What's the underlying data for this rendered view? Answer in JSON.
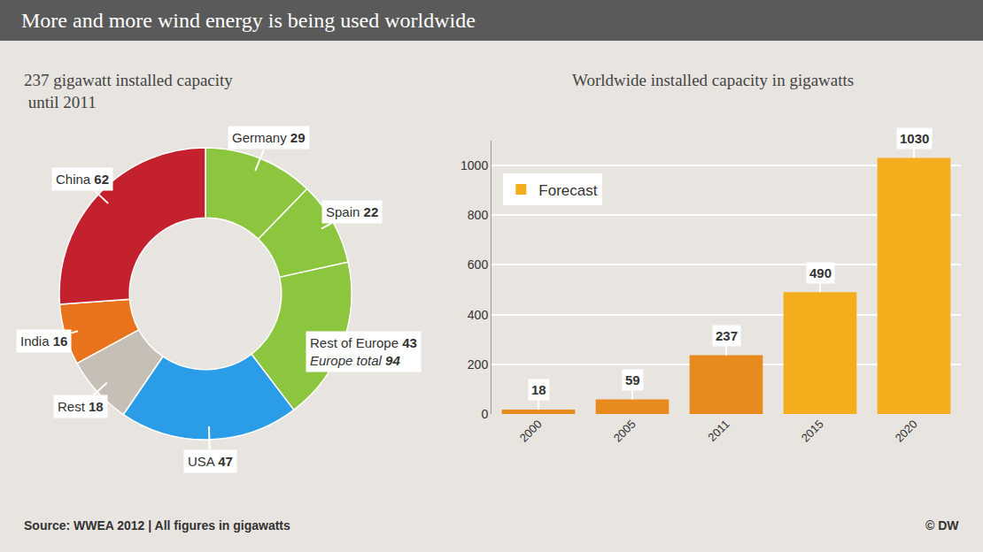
{
  "title": "More and more wind energy is being used worldwide",
  "source": "Source: WWEA 2012 | All figures in gigawatts",
  "credit": "© DW",
  "chart_data": [
    {
      "type": "pie",
      "title": "237 gigawatt installed capacity\n until 2011",
      "categories": [
        "Germany",
        "Spain",
        "Rest of Europe",
        "USA",
        "Rest",
        "India",
        "China"
      ],
      "values": [
        29,
        22,
        43,
        47,
        18,
        16,
        62
      ],
      "colors": [
        "#8cc63f",
        "#8cc63f",
        "#8cc63f",
        "#2b9ce8",
        "#c5bfb6",
        "#e8731c",
        "#c4212f"
      ],
      "data_labels": true,
      "annotations": [
        {
          "text": "Europe total",
          "value": 94,
          "category": "Rest of Europe"
        }
      ]
    },
    {
      "type": "bar",
      "title": "Worldwide installed capacity in gigawatts",
      "categories": [
        "2000",
        "2005",
        "2011",
        "2015",
        "2020"
      ],
      "series": [
        {
          "values": [
            18,
            59,
            237,
            null,
            null
          ],
          "color": "#e98a1e"
        },
        {
          "name": "Forecast",
          "values": [
            null,
            null,
            null,
            490,
            1030
          ],
          "color": "#f4ad1c"
        }
      ],
      "ylim": [
        0,
        1100
      ],
      "yticks": [
        0,
        200,
        400,
        600,
        800,
        1000
      ],
      "grid": true,
      "legend": "top left",
      "data_labels": true
    }
  ]
}
